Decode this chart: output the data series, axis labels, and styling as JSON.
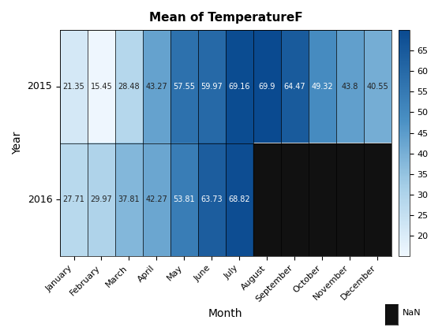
{
  "title": "Mean of TemperatureF",
  "xlabel": "Month",
  "ylabel": "Year",
  "months": [
    "January",
    "February",
    "March",
    "April",
    "May",
    "June",
    "July",
    "August",
    "September",
    "October",
    "November",
    "December"
  ],
  "years": [
    "2015",
    "2016"
  ],
  "values": [
    [
      21.35,
      15.45,
      28.48,
      43.27,
      57.55,
      59.97,
      69.16,
      69.9,
      64.47,
      49.32,
      43.8,
      40.55
    ],
    [
      27.71,
      29.97,
      37.81,
      42.27,
      53.81,
      63.73,
      68.82,
      null,
      null,
      null,
      null,
      null
    ]
  ],
  "vmin": 15,
  "vmax": 70,
  "colorbar_ticks": [
    20,
    25,
    30,
    35,
    40,
    45,
    50,
    55,
    60,
    65
  ],
  "nan_color": "#111111",
  "text_dark": "#222222",
  "text_white": "#ffffff",
  "text_threshold": 48,
  "title_fontsize": 11,
  "label_fontsize": 10,
  "tick_fontsize": 8,
  "cell_fontsize": 7
}
